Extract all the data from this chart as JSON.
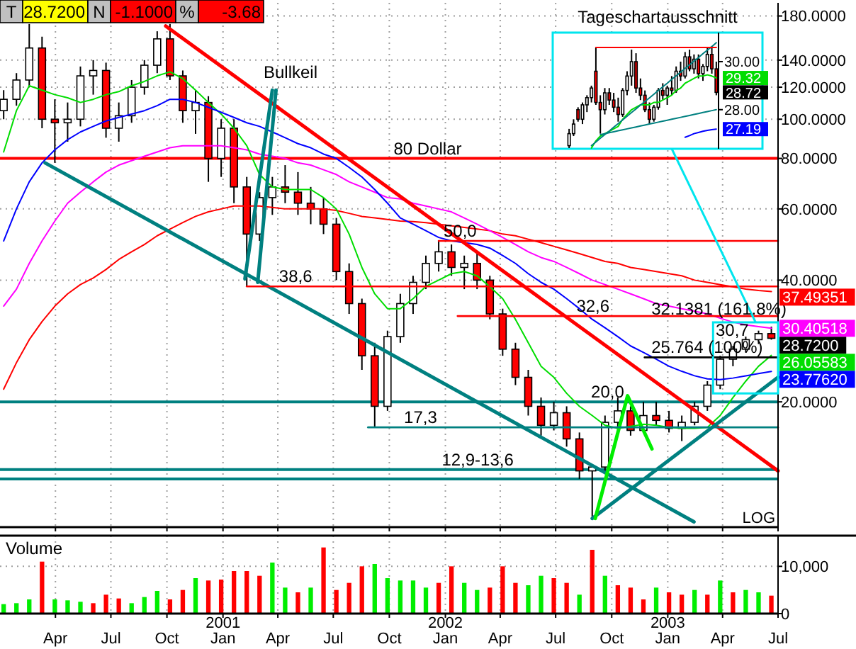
{
  "chart_data": [
    {
      "type": "candlestick",
      "log": true,
      "grid": true,
      "tick_labels": "y",
      "ylabel": "LOG",
      "x": [
        "2000-01-07",
        "2000-01-28",
        "2000-02-18",
        "2000-03-10",
        "2000-03-31",
        "2000-04-21",
        "2000-05-12",
        "2000-06-02",
        "2000-06-23",
        "2000-07-14",
        "2000-08-04",
        "2000-08-25",
        "2000-09-15",
        "2000-10-06",
        "2000-10-27",
        "2000-11-17",
        "2000-12-08",
        "2000-12-29",
        "2001-01-19",
        "2001-02-09",
        "2001-03-02",
        "2001-03-23",
        "2001-04-13",
        "2001-05-04",
        "2001-05-25",
        "2001-06-15",
        "2001-07-06",
        "2001-07-27",
        "2001-08-17",
        "2001-09-07",
        "2001-09-28",
        "2001-10-19",
        "2001-11-09",
        "2001-11-30",
        "2001-12-21",
        "2002-01-11",
        "2002-02-01",
        "2002-02-22",
        "2002-03-15",
        "2002-04-05",
        "2002-04-26",
        "2002-05-17",
        "2002-06-07",
        "2002-06-28",
        "2002-07-19",
        "2002-08-09",
        "2002-08-30",
        "2002-09-20",
        "2002-10-11",
        "2002-11-01",
        "2002-11-22",
        "2002-12-13",
        "2003-01-03",
        "2003-01-24",
        "2003-02-14",
        "2003-03-07",
        "2003-03-28",
        "2003-04-18",
        "2003-05-09",
        "2003-05-30",
        "2003-06-20"
      ],
      "ohlc": [
        [
          105,
          118,
          100,
          112
        ],
        [
          112,
          130,
          108,
          125
        ],
        [
          125,
          172,
          120,
          150
        ],
        [
          150,
          160,
          95,
          100
        ],
        [
          100,
          112,
          78,
          98
        ],
        [
          98,
          110,
          88,
          100
        ],
        [
          100,
          135,
          96,
          128
        ],
        [
          128,
          140,
          115,
          132
        ],
        [
          132,
          138,
          90,
          95
        ],
        [
          95,
          110,
          88,
          102
        ],
        [
          102,
          125,
          98,
          120
        ],
        [
          120,
          140,
          115,
          136
        ],
        [
          136,
          165,
          130,
          158
        ],
        [
          158,
          172,
          125,
          128
        ],
        [
          128,
          132,
          98,
          105
        ],
        [
          105,
          118,
          92,
          110
        ],
        [
          110,
          114,
          70,
          80
        ],
        [
          80,
          100,
          72,
          95
        ],
        [
          95,
          100,
          62,
          68
        ],
        [
          68,
          72,
          38.6,
          52
        ],
        [
          52,
          66,
          50,
          64
        ],
        [
          64,
          72,
          58,
          68
        ],
        [
          68,
          77,
          62,
          66
        ],
        [
          66,
          74,
          58,
          62
        ],
        [
          62,
          68,
          55,
          60
        ],
        [
          60,
          64,
          52,
          55
        ],
        [
          55,
          57,
          40,
          42
        ],
        [
          42,
          44,
          33,
          35
        ],
        [
          35,
          36,
          24,
          26
        ],
        [
          26,
          28,
          17.3,
          19.5
        ],
        [
          19.5,
          30,
          19,
          29
        ],
        [
          29,
          37,
          28,
          35
        ],
        [
          35,
          41,
          33,
          39.5
        ],
        [
          39.5,
          46,
          38,
          44
        ],
        [
          44,
          50,
          42,
          47
        ],
        [
          47,
          49,
          41,
          43
        ],
        [
          43,
          46,
          38,
          44
        ],
        [
          44,
          47,
          38,
          40
        ],
        [
          40,
          41,
          32,
          33
        ],
        [
          33,
          34,
          26,
          27
        ],
        [
          27,
          28,
          22,
          23
        ],
        [
          23,
          24,
          18.5,
          19.5
        ],
        [
          19.5,
          20.5,
          16.5,
          17.5
        ],
        [
          17.5,
          20,
          17,
          18.8
        ],
        [
          18.8,
          19.5,
          15.5,
          16.2
        ],
        [
          16.2,
          16.8,
          12.9,
          13.5
        ],
        [
          13.5,
          14,
          10.4,
          13.8
        ],
        [
          13.8,
          18.5,
          13.5,
          17.8
        ],
        [
          17.8,
          20.5,
          17,
          19
        ],
        [
          19,
          19.5,
          16.5,
          17
        ],
        [
          17,
          20,
          16.8,
          18.5
        ],
        [
          18.5,
          20,
          17.5,
          18
        ],
        [
          18,
          19,
          16.8,
          17.2
        ],
        [
          17.2,
          18.5,
          16,
          17.8
        ],
        [
          17.8,
          20,
          17.5,
          19.5
        ],
        [
          19.5,
          22.5,
          19,
          22
        ],
        [
          22,
          26,
          21.5,
          25.5
        ],
        [
          25.5,
          27.5,
          24.5,
          27
        ],
        [
          27,
          29,
          26.5,
          28.5
        ],
        [
          28.5,
          30,
          27.8,
          29.5
        ],
        [
          29.5,
          30.7,
          28.5,
          28.72
        ]
      ],
      "value_labels": [
        null,
        null,
        null,
        null,
        null,
        null,
        null,
        null,
        null,
        null,
        null,
        null,
        null,
        null,
        null,
        null,
        null,
        null,
        null,
        null,
        null,
        null,
        null,
        null,
        null,
        null,
        null,
        null,
        null,
        null,
        null,
        null,
        null,
        null,
        null,
        null,
        null,
        null,
        null,
        null,
        null,
        null,
        null,
        null,
        null,
        null,
        null,
        null,
        null,
        null,
        null,
        null,
        null,
        null,
        null,
        null,
        null,
        null,
        null,
        null,
        "28.7200"
      ],
      "xlim": [
        "2000-01-01",
        "2003-07-01"
      ],
      "ylim": [
        9.8,
        194
      ],
      "xticks": [
        {
          "value": "2000-04-01",
          "label": null
        },
        {
          "value": "2000-07-01",
          "label": null
        },
        {
          "value": "2000-10-01",
          "label": null
        },
        {
          "value": "2001-01-01",
          "label": null
        },
        {
          "value": "2001-04-01",
          "label": null
        },
        {
          "value": "2001-07-01",
          "label": null
        },
        {
          "value": "2001-10-01",
          "label": null
        },
        {
          "value": "2002-01-01",
          "label": null
        },
        {
          "value": "2002-04-01",
          "label": null
        },
        {
          "value": "2002-07-01",
          "label": null
        },
        {
          "value": "2002-10-01",
          "label": null
        },
        {
          "value": "2003-01-01",
          "label": null
        },
        {
          "value": "2003-04-01",
          "label": null
        },
        {
          "value": "2003-07-01",
          "label": null
        }
      ],
      "yticks": [
        {
          "value": 20,
          "label": "20.0000"
        },
        {
          "value": 40,
          "label": "40.0000"
        },
        {
          "value": 60,
          "label": "60.0000"
        },
        {
          "value": 80,
          "label": "80.0000"
        },
        {
          "value": 100,
          "label": "100.0000"
        },
        {
          "value": 120,
          "label": "120.0000"
        },
        {
          "value": 140,
          "label": "140.0000"
        },
        {
          "value": 180,
          "label": "180.0000"
        }
      ],
      "ref_lines": [
        {
          "axis": "y",
          "value": 80,
          "color": "#ff0000"
        },
        {
          "axis": "y",
          "value": 20,
          "color": "#008080"
        },
        {
          "axis": "y",
          "value": 13.6,
          "color": "#008080"
        },
        {
          "axis": "y",
          "value": 12.9,
          "color": "#008080"
        }
      ],
      "series": [
        {
          "type": "line",
          "color": "#ff0000",
          "values": [
            21.5,
            25,
            28.5,
            31.6,
            34.5,
            37,
            39,
            40.5,
            42.5,
            45,
            47,
            49,
            51.5,
            53.5,
            55.5,
            57.5,
            59,
            60,
            61,
            61,
            61,
            60.5,
            60,
            60,
            60,
            60,
            59.5,
            58.5,
            57.5,
            57,
            56.5,
            56,
            55.8,
            55.5,
            55,
            54.5,
            54,
            53.5,
            53,
            52,
            51.5,
            50.5,
            49.5,
            48.5,
            47.5,
            46.5,
            45.5,
            44.5,
            44,
            43,
            42.5,
            42,
            41.5,
            41,
            40,
            39.5,
            39,
            38.5,
            38,
            37.7,
            37.49351
          ],
          "value_labels": [
            null,
            null,
            null,
            null,
            null,
            null,
            null,
            null,
            null,
            null,
            null,
            null,
            null,
            null,
            null,
            null,
            null,
            null,
            null,
            null,
            null,
            null,
            null,
            null,
            null,
            null,
            null,
            null,
            null,
            null,
            null,
            null,
            null,
            null,
            null,
            null,
            null,
            null,
            null,
            null,
            null,
            null,
            null,
            null,
            null,
            null,
            null,
            null,
            null,
            null,
            null,
            null,
            null,
            null,
            null,
            null,
            null,
            null,
            null,
            null,
            "37.49351"
          ]
        },
        {
          "type": "line",
          "color": "#ff00ff",
          "values": [
            34.5,
            38,
            44,
            50,
            56,
            62,
            66,
            70,
            74,
            77,
            79,
            81,
            83,
            85,
            86,
            86,
            86,
            86,
            85,
            84,
            82,
            81,
            80,
            78,
            77,
            75,
            73,
            70,
            68,
            66,
            64,
            63.5,
            62,
            61,
            60,
            59,
            57,
            55,
            53,
            51,
            49,
            47,
            45.5,
            44.5,
            43,
            41.5,
            40,
            39,
            38,
            37,
            36,
            35,
            34.5,
            34,
            33.5,
            33,
            32.2,
            31.5,
            31,
            30.7,
            30.40518
          ],
          "value_labels": [
            null,
            null,
            null,
            null,
            null,
            null,
            null,
            null,
            null,
            null,
            null,
            null,
            null,
            null,
            null,
            null,
            null,
            null,
            null,
            null,
            null,
            null,
            null,
            null,
            null,
            null,
            null,
            null,
            null,
            null,
            null,
            null,
            null,
            null,
            null,
            null,
            null,
            null,
            null,
            null,
            null,
            null,
            null,
            null,
            null,
            null,
            null,
            null,
            null,
            null,
            null,
            null,
            null,
            null,
            null,
            null,
            null,
            null,
            null,
            null,
            "30.40518"
          ]
        },
        {
          "type": "line",
          "color": "#00dd00",
          "values": [
            83,
            105,
            121,
            118,
            115,
            113,
            110,
            112,
            115,
            117,
            121,
            124,
            128,
            131,
            126,
            118,
            110,
            103,
            95,
            86,
            73,
            68,
            67,
            67,
            67,
            64,
            60,
            52,
            43,
            37,
            34,
            34,
            36,
            38.6,
            40,
            41.5,
            42,
            41,
            38.5,
            36,
            32,
            28,
            24.5,
            23,
            21,
            19.5,
            18.5,
            17.5,
            17.2,
            17.4,
            17.6,
            17.5,
            17.3,
            17.2,
            17.2,
            17.3,
            18.5,
            20.5,
            22.5,
            24.5,
            26.05583
          ],
          "value_labels": [
            null,
            null,
            null,
            null,
            null,
            null,
            null,
            null,
            null,
            null,
            null,
            null,
            null,
            null,
            null,
            null,
            null,
            null,
            null,
            null,
            null,
            null,
            null,
            null,
            null,
            null,
            null,
            null,
            null,
            null,
            null,
            null,
            null,
            null,
            null,
            null,
            null,
            null,
            null,
            null,
            null,
            null,
            null,
            null,
            null,
            null,
            null,
            null,
            null,
            null,
            null,
            null,
            null,
            null,
            null,
            null,
            null,
            null,
            null,
            null,
            "26.05583"
          ]
        },
        {
          "type": "line",
          "color": "#0000ff",
          "values": [
            50,
            60,
            70,
            78,
            84,
            89,
            93,
            96,
            99,
            101,
            103,
            105,
            108,
            112,
            112,
            110,
            107,
            104,
            101,
            98,
            96,
            93,
            90,
            87,
            85,
            82,
            80,
            76,
            72,
            67,
            62,
            57,
            55,
            53,
            51,
            50,
            49.5,
            49,
            48,
            46,
            44,
            41.5,
            39.5,
            38,
            36,
            34,
            32,
            30.5,
            29,
            27.5,
            26.5,
            25.5,
            24.5,
            23.8,
            23.2,
            22.8,
            22.7,
            22.9,
            23.2,
            23.5,
            23.7762
          ],
          "value_labels": [
            null,
            null,
            null,
            null,
            null,
            null,
            null,
            null,
            null,
            null,
            null,
            null,
            null,
            null,
            null,
            null,
            null,
            null,
            null,
            null,
            null,
            null,
            null,
            null,
            null,
            null,
            null,
            null,
            null,
            null,
            null,
            null,
            null,
            null,
            null,
            null,
            null,
            null,
            null,
            null,
            null,
            null,
            null,
            null,
            null,
            null,
            null,
            null,
            null,
            null,
            null,
            null,
            null,
            null,
            null,
            null,
            null,
            null,
            null,
            null,
            "23.77620"
          ]
        },
        {
          "type": "line",
          "color": "#ff0000",
          "x": [
            "2000-09-29",
            "2003-07-01"
          ],
          "values": [
            170,
            13.5
          ]
        },
        {
          "type": "line",
          "color": "#008080",
          "x": [
            "2000-03-15",
            "2003-02-13"
          ],
          "values": [
            78,
            10.1
          ]
        },
        {
          "type": "line",
          "color": "#008080",
          "x": [
            "2002-08-30",
            "2003-07-01"
          ],
          "values": [
            10.3,
            23
          ]
        },
        {
          "type": "line",
          "color": "#008080",
          "x": [
            "2001-02-06",
            "2001-03-23"
          ],
          "values": [
            40.3,
            118
          ]
        },
        {
          "type": "line",
          "color": "#008080",
          "x": [
            "2001-02-27",
            "2001-03-29"
          ],
          "values": [
            39.5,
            118
          ]
        },
        {
          "type": "line",
          "color": "#00ee00",
          "x": [
            "2002-09-04",
            "2002-10-27",
            "2002-12-06"
          ],
          "values": [
            10.3,
            20.7,
            15.3
          ]
        },
        {
          "type": "line",
          "color": "#ff0000",
          "x": [
            "2001-12-21",
            "2003-07-01"
          ],
          "values": [
            50,
            50
          ]
        },
        {
          "type": "line",
          "color": "#ff0000",
          "x": [
            "2001-02-09",
            "2003-07-01"
          ],
          "values": [
            38.6,
            38.6
          ]
        },
        {
          "type": "line",
          "color": "#ff0000",
          "x": [
            "2002-01-21",
            "2003-07-01"
          ],
          "values": [
            32.6,
            32.6
          ]
        },
        {
          "type": "line",
          "color": "#008080",
          "x": [
            "2001-08-27",
            "2003-07-01"
          ],
          "values": [
            17.3,
            17.3
          ]
        },
        {
          "type": "line",
          "color": "#000000",
          "x": [
            "2002-11-24",
            "2003-07-01"
          ],
          "values": [
            25.764,
            25.764
          ]
        }
      ],
      "annotations": [
        "T",
        "28.7200",
        "N",
        "-1.1000",
        "%",
        "-3.68",
        "Bullkeil",
        "30,7",
        {
          "text": "80 Dollar",
          "x": "2001-10-08",
          "y": 80
        },
        {
          "text": "50,0",
          "x": "2001-12-29",
          "y": 50
        },
        {
          "text": "38,6",
          "x": "2001-04-03",
          "y": 38.6
        },
        {
          "text": "32,6",
          "x": "2002-08-04",
          "y": 32.6
        },
        {
          "text": "32.1381 (161.8%)",
          "x": "2002-12-05",
          "y": 32.1381
        },
        {
          "text": "25.764 (100%)",
          "x": "2002-12-05",
          "y": 25.764
        },
        {
          "text": "20,0",
          "x": "2002-08-28",
          "y": 20
        },
        {
          "text": "17,3",
          "x": "2001-10-25",
          "y": 17.3
        },
        {
          "text": "12,9-13,6",
          "x": "2001-12-26",
          "y": 13.6
        }
      ]
    },
    {
      "type": "candlestick",
      "title": "Tageschartausschnitt",
      "tick_labels": "y",
      "categories": [
        null,
        null,
        null,
        null,
        null,
        null,
        null,
        null,
        null,
        null,
        null,
        null,
        null,
        null,
        null,
        null,
        null,
        null,
        null,
        null,
        null,
        null,
        null,
        null,
        null,
        null,
        null,
        null,
        null,
        null,
        null,
        null,
        null,
        null
      ],
      "ohlc": [
        [
          26.5,
          27.2,
          26.4,
          27.0
        ],
        [
          27.0,
          27.6,
          26.9,
          27.4
        ],
        [
          28.0,
          28.1,
          27.5,
          27.6
        ],
        [
          27.6,
          28.3,
          27.4,
          28.2
        ],
        [
          28.2,
          28.6,
          27.9,
          28.5
        ],
        [
          28.5,
          29.0,
          28.3,
          28.9
        ],
        [
          29.6,
          30.6,
          28.2,
          28.3
        ],
        [
          28.3,
          28.6,
          27.0,
          28.0
        ],
        [
          28.0,
          28.9,
          27.8,
          28.7
        ],
        [
          28.7,
          28.9,
          28.2,
          28.4
        ],
        [
          28.4,
          28.7,
          27.9,
          28.1
        ],
        [
          28.1,
          28.5,
          27.5,
          27.8
        ],
        [
          27.8,
          28.9,
          27.7,
          28.8
        ],
        [
          28.8,
          29.6,
          28.6,
          29.4
        ],
        [
          29.4,
          30.5,
          29.0,
          30.0
        ],
        [
          30.0,
          30.35,
          28.7,
          28.9
        ],
        [
          28.9,
          29.3,
          28.4,
          28.6
        ],
        [
          28.6,
          28.8,
          27.9,
          28.0
        ],
        [
          28.0,
          28.3,
          27.4,
          27.6
        ],
        [
          27.6,
          28.2,
          27.5,
          28.1
        ],
        [
          28.1,
          28.9,
          28.0,
          28.8
        ],
        [
          28.8,
          29.1,
          28.4,
          28.6
        ],
        [
          28.6,
          29.0,
          28.2,
          28.9
        ],
        [
          28.9,
          29.4,
          28.6,
          28.8
        ],
        [
          28.8,
          29.8,
          28.7,
          29.6
        ],
        [
          29.6,
          30.0,
          29.2,
          29.4
        ],
        [
          29.4,
          30.4,
          29.3,
          30.2
        ],
        [
          30.2,
          30.5,
          29.6,
          29.7
        ],
        [
          29.7,
          30.3,
          29.5,
          30.1
        ],
        [
          30.1,
          30.3,
          29.3,
          29.5
        ],
        [
          29.5,
          29.9,
          29.2,
          29.8
        ],
        [
          29.8,
          30.6,
          29.6,
          30.3
        ],
        [
          30.3,
          30.6,
          29.5,
          29.7
        ],
        [
          29.7,
          30.0,
          28.6,
          28.72
        ]
      ],
      "ylim": [
        26.37,
        31.21
      ],
      "yticks": [
        {
          "value": 30,
          "label": "30.00"
        },
        {
          "value": 28,
          "label": "28.00"
        }
      ],
      "series": [
        {
          "type": "line",
          "color": "#00dd00",
          "values": [
            null,
            null,
            null,
            null,
            null,
            26.4,
            26.7,
            26.9,
            27.0,
            27.1,
            27.2,
            27.3,
            27.6,
            27.8,
            28.0,
            28.1,
            28.2,
            28.2,
            28.2,
            28.3,
            28.3,
            28.4,
            28.5,
            28.6,
            28.8,
            28.9,
            29.1,
            29.2,
            29.3,
            29.4,
            29.4,
            29.45,
            29.4,
            29.32
          ],
          "value_labels": [
            null,
            null,
            null,
            null,
            null,
            null,
            null,
            null,
            null,
            null,
            null,
            null,
            null,
            null,
            null,
            null,
            null,
            null,
            null,
            null,
            null,
            null,
            null,
            null,
            null,
            null,
            null,
            null,
            null,
            null,
            null,
            null,
            null,
            "29.32"
          ]
        },
        {
          "type": "line",
          "color": "#0000ff",
          "values": [
            null,
            null,
            null,
            null,
            null,
            null,
            null,
            null,
            null,
            null,
            null,
            null,
            null,
            null,
            null,
            null,
            null,
            null,
            null,
            null,
            null,
            null,
            null,
            null,
            null,
            null,
            26.85,
            26.92,
            27.0,
            27.05,
            27.1,
            27.14,
            27.17,
            27.19
          ],
          "value_labels": [
            null,
            null,
            null,
            null,
            null,
            null,
            null,
            null,
            null,
            null,
            null,
            null,
            null,
            null,
            null,
            null,
            null,
            null,
            null,
            null,
            null,
            null,
            null,
            null,
            null,
            null,
            null,
            null,
            null,
            null,
            null,
            null,
            null,
            "27.19"
          ]
        },
        {
          "type": "line",
          "color": "#008080",
          "values": [
            null,
            null,
            null,
            null,
            null,
            null,
            null,
            26.96,
            27.0,
            27.04,
            27.08,
            27.12,
            27.16,
            27.2,
            27.24,
            27.28,
            27.32,
            27.36,
            27.4,
            27.44,
            27.48,
            27.52,
            27.56,
            27.6,
            27.64,
            27.68,
            27.72,
            27.76,
            27.8,
            27.84,
            27.88,
            27.92,
            27.96,
            28.0
          ]
        },
        {
          "type": "line",
          "color": "#008080",
          "values": [
            null,
            null,
            null,
            null,
            null,
            26.5,
            26.65,
            26.81,
            26.96,
            27.11,
            27.27,
            27.42,
            27.57,
            27.73,
            27.88,
            28.03,
            28.19,
            28.34,
            28.49,
            28.64,
            28.8,
            28.95,
            29.1,
            29.26,
            29.41,
            29.56,
            29.72,
            29.87,
            30.02,
            30.17,
            30.33,
            30.48,
            30.63,
            30.79
          ]
        },
        {
          "type": "line",
          "color": "#ff0000",
          "values": [
            null,
            null,
            null,
            null,
            null,
            null,
            30.59,
            30.59,
            30.59,
            30.59,
            30.59,
            30.59,
            30.59,
            30.59,
            30.59,
            30.59,
            30.59,
            30.59,
            30.59,
            30.59,
            30.59,
            30.59,
            30.59,
            30.59,
            30.59,
            30.59,
            30.59,
            30.59,
            30.59,
            30.59,
            30.59,
            30.59,
            30.59,
            30.59
          ]
        }
      ],
      "value_labels": [
        null,
        null,
        null,
        null,
        null,
        null,
        null,
        null,
        null,
        null,
        null,
        null,
        null,
        null,
        null,
        null,
        null,
        null,
        null,
        null,
        null,
        null,
        null,
        null,
        null,
        null,
        null,
        null,
        null,
        null,
        null,
        null,
        null,
        "28.72"
      ]
    },
    {
      "type": "bar",
      "title": "Volume",
      "grid": true,
      "x": [
        "2000-01-07",
        "2000-01-28",
        "2000-02-18",
        "2000-03-10",
        "2000-03-31",
        "2000-04-21",
        "2000-05-12",
        "2000-06-02",
        "2000-06-23",
        "2000-07-14",
        "2000-08-04",
        "2000-08-25",
        "2000-09-15",
        "2000-10-06",
        "2000-10-27",
        "2000-11-17",
        "2000-12-08",
        "2000-12-29",
        "2001-01-19",
        "2001-02-09",
        "2001-03-02",
        "2001-03-23",
        "2001-04-13",
        "2001-05-04",
        "2001-05-25",
        "2001-06-15",
        "2001-07-06",
        "2001-07-27",
        "2001-08-17",
        "2001-09-07",
        "2001-09-28",
        "2001-10-19",
        "2001-11-09",
        "2001-11-30",
        "2001-12-21",
        "2002-01-11",
        "2002-02-01",
        "2002-02-22",
        "2002-03-15",
        "2002-04-05",
        "2002-04-26",
        "2002-05-17",
        "2002-06-07",
        "2002-06-28",
        "2002-07-19",
        "2002-08-09",
        "2002-08-30",
        "2002-09-20",
        "2002-10-11",
        "2002-11-01",
        "2002-11-22",
        "2002-12-13",
        "2003-01-03",
        "2003-01-24",
        "2003-02-14",
        "2003-03-07",
        "2003-03-28",
        "2003-04-18",
        "2003-05-09",
        "2003-05-30",
        "2003-06-20"
      ],
      "values": [
        2000,
        2200,
        3000,
        11000,
        3000,
        2800,
        2500,
        2200,
        4000,
        3200,
        2200,
        3500,
        4800,
        3000,
        5000,
        7500,
        7000,
        7200,
        9000,
        9000,
        8000,
        10800,
        5500,
        4500,
        5500,
        14000,
        5000,
        6500,
        10000,
        10500,
        7500,
        7000,
        7000,
        5500,
        6500,
        10000,
        6500,
        5000,
        5500,
        10000,
        6500,
        6000,
        8000,
        7500,
        6500,
        4000,
        13500,
        8000,
        6000,
        5500,
        3000,
        5500,
        4500,
        4000,
        5000,
        4000,
        7000,
        4500,
        5000,
        4500,
        3800
      ],
      "colors": [
        "#00ee00",
        "#00ee00",
        "#00ee00",
        "#ff0000",
        "#00ee00",
        "#00ee00",
        "#00ee00",
        "#ff0000",
        "#ff0000",
        "#ff0000",
        "#00ee00",
        "#00ee00",
        "#00ee00",
        "#ff0000",
        "#ff0000",
        "#00ee00",
        "#ff0000",
        "#ff0000",
        "#ff0000",
        "#ff0000",
        "#ff0000",
        "#00ee00",
        "#00ee00",
        "#ff0000",
        "#00ee00",
        "#ff0000",
        "#ff0000",
        "#ff0000",
        "#ff0000",
        "#00ee00",
        "#00ee00",
        "#00ee00",
        "#00ee00",
        "#00ee00",
        "#ff0000",
        "#ff0000",
        "#00ee00",
        "#00ee00",
        "#ff0000",
        "#ff0000",
        "#ff0000",
        "#00ee00",
        "#00ee00",
        "#ff0000",
        "#ff0000",
        "#00ee00",
        "#ff0000",
        "#00ee00",
        "#ff0000",
        "#ff0000",
        "#ff0000",
        "#00ee00",
        "#ff0000",
        "#ff0000",
        "#00ee00",
        "#ff0000",
        "#00ee00",
        "#ff0000",
        "#00ee00",
        "#00ee00",
        "#ff0000"
      ],
      "xlim": [
        "2000-01-01",
        "2003-07-01"
      ],
      "ylim": [
        0,
        16500
      ],
      "xticks": [
        {
          "value": "2000-04-01",
          "label": "Apr"
        },
        {
          "value": "2000-07-01",
          "label": "Jul"
        },
        {
          "value": "2000-10-01",
          "label": "Oct"
        },
        {
          "value": "2001-01-01",
          "label": "2001\nJan"
        },
        {
          "value": "2001-04-01",
          "label": "Apr"
        },
        {
          "value": "2001-07-01",
          "label": "Jul"
        },
        {
          "value": "2001-10-01",
          "label": "Oct"
        },
        {
          "value": "2002-01-01",
          "label": "2002\nJan"
        },
        {
          "value": "2002-04-01",
          "label": "Apr"
        },
        {
          "value": "2002-07-01",
          "label": "Jul"
        },
        {
          "value": "2002-10-01",
          "label": "Oct"
        },
        {
          "value": "2003-01-01",
          "label": "2003\nJan"
        },
        {
          "value": "2003-04-01",
          "label": "Apr"
        },
        {
          "value": "2003-07-01",
          "label": "Jul"
        }
      ],
      "yticks": [
        0,
        {
          "value": 10000,
          "label": "10,000"
        }
      ]
    }
  ]
}
